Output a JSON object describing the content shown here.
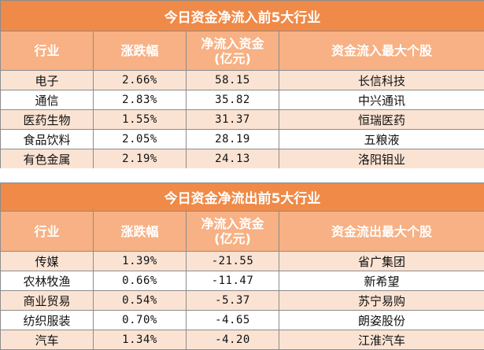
{
  "chart_data": [
    {
      "type": "table",
      "title": "今日资金净流入前5大行业",
      "columns": [
        "行业",
        "涨跌幅",
        "净流入资金\n(亿元)",
        "资金流入最大个股"
      ],
      "rows": [
        {
          "industry": "电子",
          "change": "2.66%",
          "flow": "58.15",
          "stock": "长信科技"
        },
        {
          "industry": "通信",
          "change": "2.83%",
          "flow": "35.82",
          "stock": "中兴通讯"
        },
        {
          "industry": "医药生物",
          "change": "1.55%",
          "flow": "31.37",
          "stock": "恒瑞医药"
        },
        {
          "industry": "食品饮料",
          "change": "2.05%",
          "flow": "28.19",
          "stock": "五粮液"
        },
        {
          "industry": "有色金属",
          "change": "2.19%",
          "flow": "24.13",
          "stock": "洛阳钼业"
        }
      ]
    },
    {
      "type": "table",
      "title": "今日资金净流出前5大行业",
      "columns": [
        "行业",
        "涨跌幅",
        "净流入资金\n(亿元)",
        "资金流出最大个股"
      ],
      "rows": [
        {
          "industry": "传媒",
          "change": "1.39%",
          "flow": "-21.55",
          "stock": "省广集团"
        },
        {
          "industry": "农林牧渔",
          "change": "0.66%",
          "flow": "-11.47",
          "stock": "新希望"
        },
        {
          "industry": "商业贸易",
          "change": "0.54%",
          "flow": "-5.37",
          "stock": "苏宁易购"
        },
        {
          "industry": "纺织服装",
          "change": "0.70%",
          "flow": "-4.65",
          "stock": "朗姿股份"
        },
        {
          "industry": "汽车",
          "change": "1.34%",
          "flow": "-4.20",
          "stock": "江淮汽车"
        }
      ]
    }
  ]
}
